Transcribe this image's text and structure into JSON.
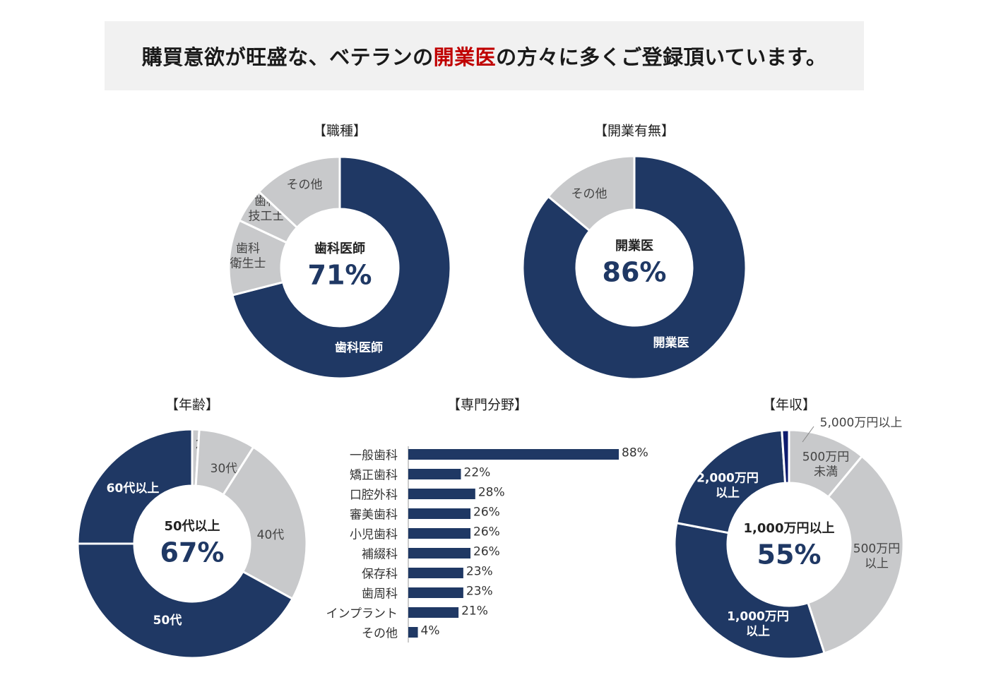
{
  "header": {
    "before": "購買意欲が旺盛な、ベテランの",
    "highlight": "開業医",
    "after": "の方々に多くご登録頂いています。",
    "highlight_color": "#c00000"
  },
  "colors": {
    "navy": "#1f3864",
    "gray": "#c8c9cb",
    "dark_navy": "#0e1c6e"
  },
  "chart_data": [
    {
      "type": "pie",
      "title": "【職種】",
      "center_label": "歯科医師",
      "center_value": "71%",
      "slices": [
        {
          "label": "歯科医師",
          "value": 71,
          "color": "navy"
        },
        {
          "label": "歯科\n衛生士",
          "value": 11,
          "color": "gray"
        },
        {
          "label": "歯科\n技工士",
          "value": 5,
          "color": "gray"
        },
        {
          "label": "その他",
          "value": 13,
          "color": "gray"
        }
      ]
    },
    {
      "type": "pie",
      "title": "【開業有無】",
      "center_label": "開業医",
      "center_value": "86%",
      "slices": [
        {
          "label": "開業医",
          "value": 86,
          "color": "navy"
        },
        {
          "label": "その他",
          "value": 14,
          "color": "gray"
        }
      ]
    },
    {
      "type": "pie",
      "title": "【年齢】",
      "center_label": "50代以上",
      "center_value": "67%",
      "slices": [
        {
          "label": "",
          "value": 1,
          "color": "gray"
        },
        {
          "label": "20代",
          "value": 0,
          "color": "gray"
        },
        {
          "label": "30代",
          "value": 8,
          "color": "gray"
        },
        {
          "label": "40代",
          "value": 24,
          "color": "gray"
        },
        {
          "label": "50代",
          "value": 42,
          "color": "navy"
        },
        {
          "label": "60代以上",
          "value": 25,
          "color": "navy"
        }
      ]
    },
    {
      "type": "bar",
      "orientation": "horizontal",
      "title": "【専門分野】",
      "categories": [
        "一般歯科",
        "矯正歯科",
        "口腔外科",
        "審美歯科",
        "小児歯科",
        "補綴科",
        "保存科",
        "歯周科",
        "インプラント",
        "その他"
      ],
      "values": [
        88,
        22,
        28,
        26,
        26,
        26,
        23,
        23,
        21,
        4
      ],
      "value_labels": [
        "88%",
        "22%",
        "28%",
        "26%",
        "26%",
        "26%",
        "23%",
        "23%",
        "21%",
        "4%"
      ],
      "xlim": [
        0,
        100
      ]
    },
    {
      "type": "pie",
      "title": "【年収】",
      "center_label": "1,000万円以上",
      "center_value": "55%",
      "slices": [
        {
          "label": "500万円\n未満",
          "value": 11,
          "color": "gray"
        },
        {
          "label": "500万円\n以上",
          "value": 34,
          "color": "gray"
        },
        {
          "label": "1,000万円\n以上",
          "value": 33,
          "color": "navy"
        },
        {
          "label": "2,000万円\n以上",
          "value": 21,
          "color": "navy"
        },
        {
          "label": "5,000万円以上",
          "value": 1,
          "color": "dark_navy"
        }
      ]
    }
  ]
}
